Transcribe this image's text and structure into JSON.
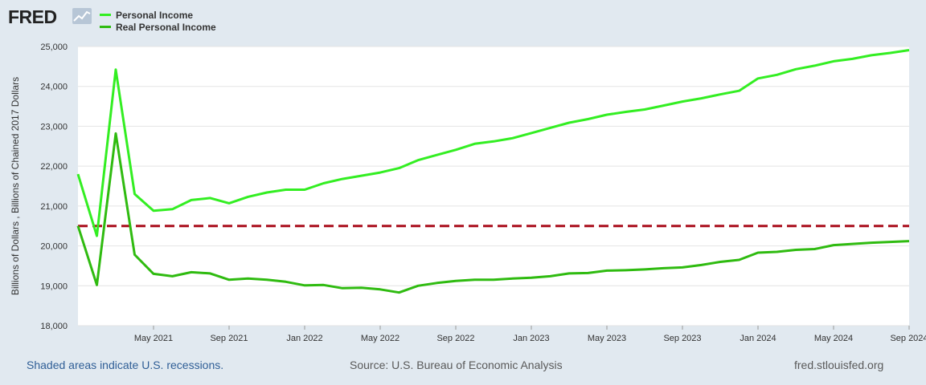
{
  "header": {
    "logo_text": "FRED",
    "logo_icon": "line-chart-icon"
  },
  "legend": [
    {
      "label": "Personal Income",
      "color": "#33ee22"
    },
    {
      "label": "Real Personal Income",
      "color": "#2fbb10"
    }
  ],
  "footer": {
    "recession_note": "Shaded areas indicate U.S. recessions.",
    "source": "Source: U.S. Bureau of Economic Analysis",
    "site": "fred.stlouisfed.org"
  },
  "chart_data": {
    "type": "line",
    "title": "",
    "xlabel": "",
    "ylabel": "Billions of Dollars , Billions of Chained 2017 Dollars",
    "ylim": [
      18000,
      25000
    ],
    "y_ticks": [
      18000,
      19000,
      20000,
      21000,
      22000,
      23000,
      24000,
      25000
    ],
    "y_tick_labels": [
      "18,000",
      "19,000",
      "20,000",
      "21,000",
      "22,000",
      "23,000",
      "24,000",
      "25,000"
    ],
    "x_range": [
      "2021-01",
      "2024-09"
    ],
    "x_tick_labels": [
      "May 2021",
      "Sep 2021",
      "Jan 2022",
      "May 2022",
      "Sep 2022",
      "Jan 2023",
      "May 2023",
      "Sep 2023",
      "Jan 2024",
      "May 2024",
      "Sep 2024"
    ],
    "x_tick_month_index": [
      4,
      8,
      12,
      16,
      20,
      24,
      28,
      32,
      36,
      40,
      44
    ],
    "reference_line": {
      "value": 20500,
      "color": "#aa0e1c",
      "style": "dashed"
    },
    "series": [
      {
        "name": "Personal Income",
        "color": "#33ee22",
        "values": [
          21800,
          20250,
          24420,
          21300,
          20880,
          20920,
          21150,
          21200,
          21070,
          21230,
          21340,
          21410,
          21410,
          21570,
          21680,
          21760,
          21840,
          21950,
          22150,
          22280,
          22410,
          22560,
          22620,
          22700,
          22830,
          22960,
          23090,
          23180,
          23290,
          23360,
          23420,
          23520,
          23620,
          23700,
          23800,
          23890,
          24200,
          24290,
          24430,
          24520,
          24630,
          24690,
          24780,
          24840,
          24910
        ]
      },
      {
        "name": "Real Personal Income",
        "color": "#2fbb10",
        "values": [
          20500,
          19020,
          22820,
          19780,
          19300,
          19240,
          19340,
          19310,
          19150,
          19180,
          19150,
          19100,
          19010,
          19020,
          18940,
          18950,
          18910,
          18830,
          19000,
          19070,
          19120,
          19150,
          19150,
          19180,
          19200,
          19240,
          19310,
          19320,
          19380,
          19390,
          19410,
          19440,
          19460,
          19520,
          19600,
          19650,
          19830,
          19850,
          19900,
          19920,
          20020,
          20050,
          20080,
          20100,
          20120
        ]
      }
    ]
  }
}
